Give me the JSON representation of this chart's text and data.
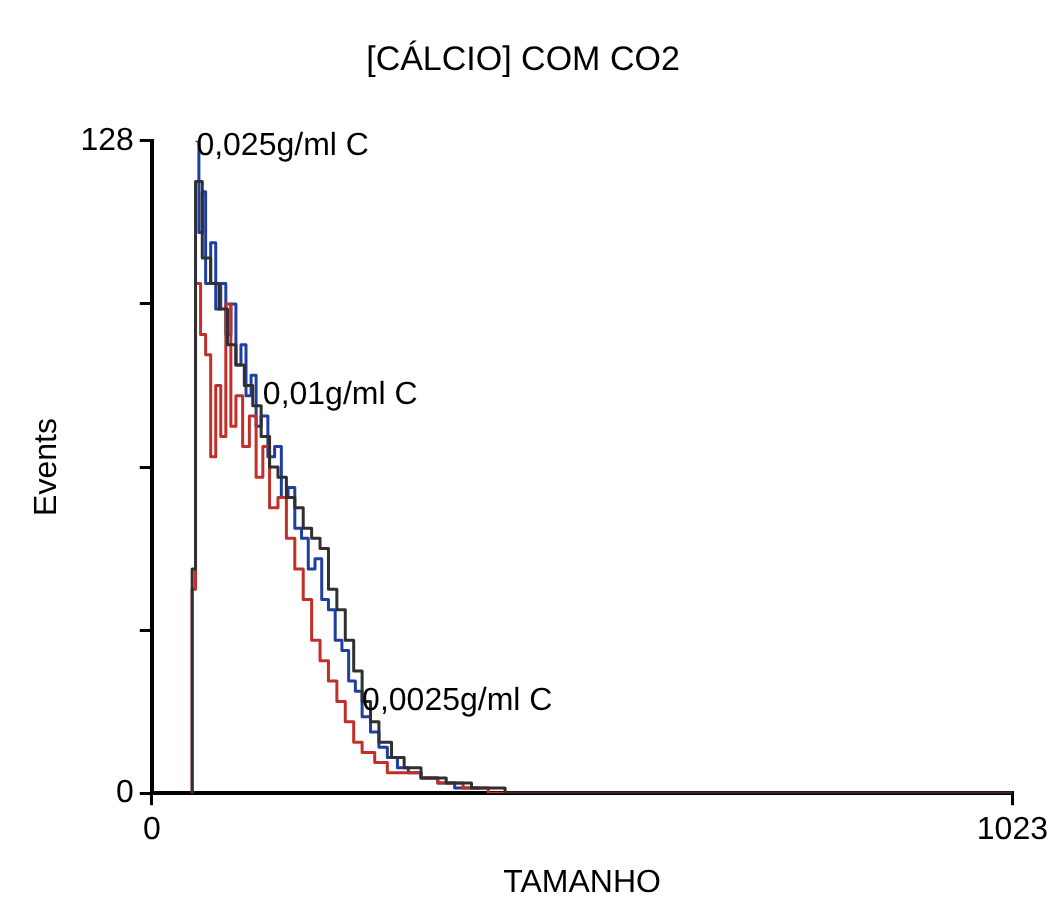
{
  "chart_data": {
    "type": "step",
    "title": "[CÁLCIO] COM CO2",
    "xlabel": "TAMANHO",
    "ylabel": "Events",
    "xlim": [
      0,
      1023
    ],
    "xticks": [
      0,
      1023
    ],
    "ylim": [
      0,
      128
    ],
    "yticks": [
      0,
      {
        "value": 32,
        "label": null
      },
      {
        "value": 64,
        "label": null
      },
      {
        "value": 96,
        "label": null
      },
      128
    ],
    "grid": false,
    "legend": false,
    "series": [
      {
        "color": "#303030",
        "x": [
          46,
          48,
          52,
          60,
          70,
          80,
          90,
          100,
          110,
          120,
          130,
          140,
          150,
          160,
          170,
          180,
          190,
          200,
          210,
          220,
          230,
          240,
          250,
          260,
          270,
          285,
          300,
          320,
          350,
          380,
          420,
          1023
        ],
        "values": [
          0,
          44,
          120,
          105,
          100,
          95,
          88,
          84,
          80,
          76,
          70,
          64,
          62,
          58,
          56,
          52,
          50,
          48,
          40,
          36,
          30,
          24,
          18,
          14,
          10,
          7,
          5,
          3,
          2,
          1,
          0,
          0
        ]
      },
      {
        "color": "#c0302a",
        "x": [
          46,
          48,
          52,
          58,
          64,
          70,
          76,
          82,
          88,
          94,
          100,
          108,
          116,
          124,
          132,
          140,
          150,
          160,
          170,
          180,
          190,
          200,
          210,
          220,
          230,
          240,
          250,
          265,
          280,
          300,
          320,
          340,
          370,
          400,
          1023
        ],
        "values": [
          0,
          40,
          100,
          90,
          86,
          66,
          80,
          70,
          96,
          72,
          78,
          68,
          74,
          62,
          68,
          56,
          58,
          50,
          44,
          38,
          30,
          26,
          22,
          18,
          14,
          10,
          8,
          6,
          4,
          4,
          3,
          2,
          1,
          0,
          0
        ]
      },
      {
        "color": "#1f3fa0",
        "x": [
          52,
          56,
          60,
          64,
          70,
          76,
          82,
          88,
          94,
          100,
          106,
          112,
          118,
          124,
          130,
          138,
          146,
          154,
          162,
          170,
          178,
          186,
          194,
          202,
          210,
          218,
          226,
          234,
          242,
          250,
          260,
          270,
          280,
          292,
          305,
          320,
          340,
          360,
          390
        ],
        "values": [
          128,
          110,
          118,
          100,
          108,
          95,
          100,
          90,
          96,
          84,
          88,
          78,
          82,
          72,
          74,
          66,
          68,
          58,
          60,
          52,
          50,
          44,
          46,
          38,
          36,
          30,
          28,
          22,
          20,
          15,
          12,
          9,
          7,
          5,
          4,
          3,
          2,
          1,
          1
        ]
      }
    ],
    "annotations": [
      {
        "text": "0,025g/ml C",
        "x": 53,
        "y": 127
      },
      {
        "text": "0,01g/ml C",
        "x": 132,
        "y": 78
      },
      {
        "text": "0,0025g/ml C",
        "x": 250,
        "y": 18
      }
    ]
  }
}
